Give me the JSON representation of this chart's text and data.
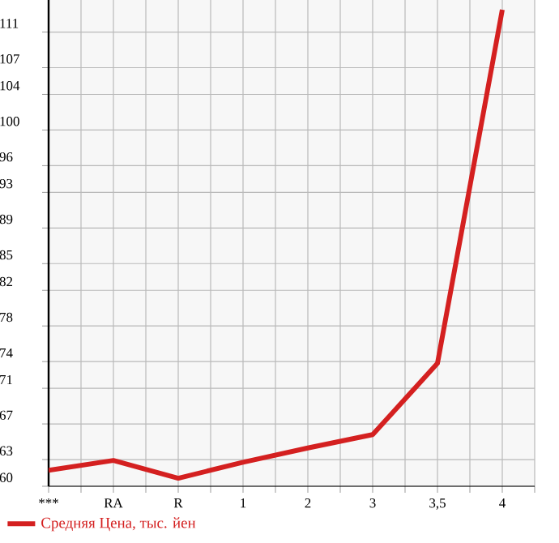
{
  "chart_data": {
    "type": "line",
    "categories": [
      "***",
      "RA",
      "R",
      "1",
      "2",
      "3",
      "3,5",
      "4"
    ],
    "series": [
      {
        "name": "Средняя Цена, тыс. йен",
        "color": "#d42020",
        "values": [
          61.8,
          62.9,
          60.9,
          62.7,
          64.3,
          65.8,
          73.8,
          113.5
        ]
      }
    ],
    "ylim": [
      60,
      114.6
    ],
    "yticks": [
      60,
      63,
      67,
      71,
      74,
      78,
      82,
      85,
      89,
      93,
      96,
      100,
      104,
      107,
      111
    ],
    "grid": true,
    "legend": "bottom",
    "marker": "none",
    "line_style": "solid"
  }
}
